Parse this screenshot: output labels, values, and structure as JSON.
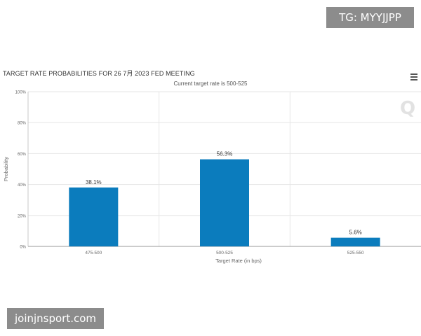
{
  "badges": {
    "top_right": "TG: MYYJJPP",
    "bottom_left": "joinjnsport.com"
  },
  "menu": {
    "icon": "hamburger-menu-icon"
  },
  "watermark": {
    "letter": "Q"
  },
  "chart_data": {
    "type": "bar",
    "title": "TARGET RATE PROBABILITIES FOR 26 7月 2023 FED MEETING",
    "subtitle": "Current target rate is 500-525",
    "xlabel": "Target Rate (in bps)",
    "ylabel": "Probability",
    "ylim": [
      0,
      100
    ],
    "yticks": [
      "0%",
      "20%",
      "40%",
      "60%",
      "80%",
      "100%"
    ],
    "categories": [
      "475-500",
      "500-525",
      "525-550"
    ],
    "values": [
      38.1,
      56.3,
      5.6
    ],
    "data_labels": [
      "38.1%",
      "56.3%",
      "5.6%"
    ],
    "bar_color": "#0b7cbd",
    "grid": true,
    "legend": "none"
  }
}
